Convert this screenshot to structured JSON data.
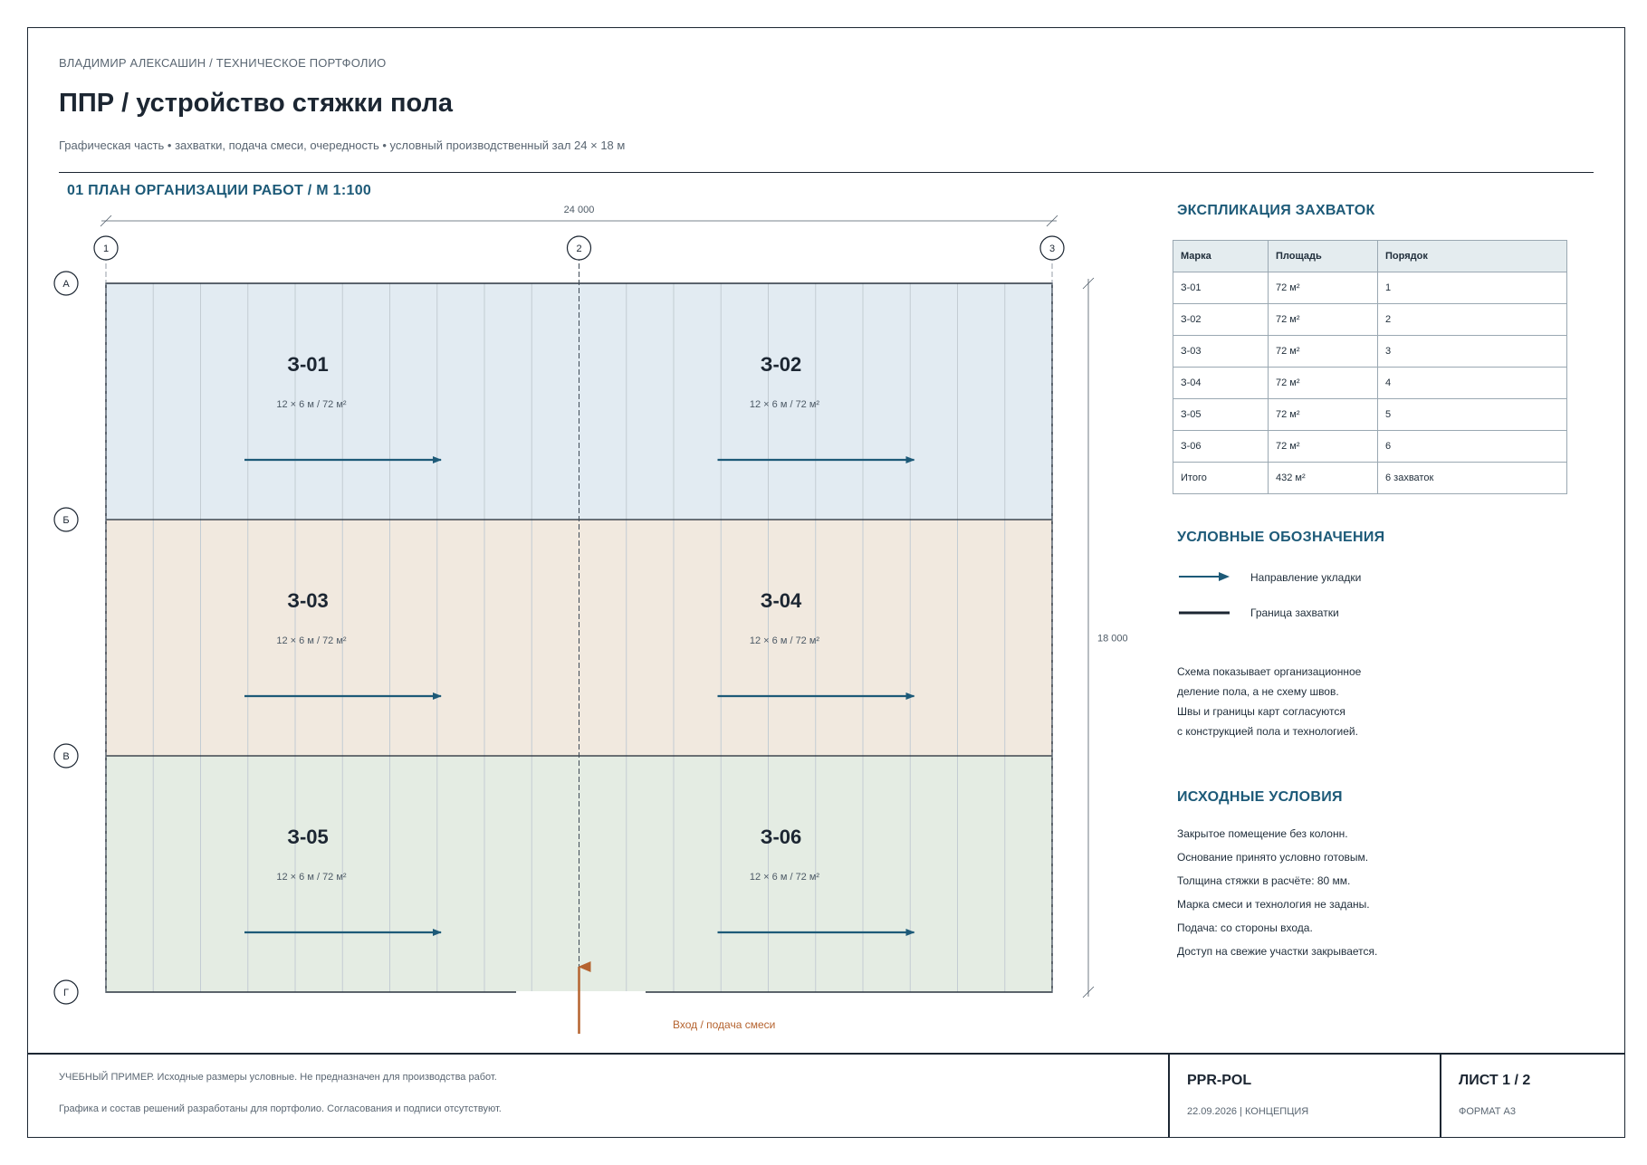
{
  "header": {
    "breadcrumb": "ВЛАДИМИР АЛЕКСАШИН  /  ТЕХНИЧЕСКОЕ ПОРТФОЛИО",
    "title": "ППР / устройство стяжки пола",
    "subtitle": "Графическая часть • захватки, подача смеси, очередность • условный производственный зал 24 × 18 м"
  },
  "plan": {
    "section_title": "01  ПЛАН ОРГАНИЗАЦИИ РАБОТ  /  М 1:100",
    "dim_width": "24 000",
    "dim_height": "18 000",
    "axes_columns": [
      "1",
      "2",
      "3"
    ],
    "axes_rows": [
      "А",
      "Б",
      "В",
      "Г"
    ],
    "zones": [
      {
        "mark": "З-01",
        "size": "12 × 6 м / 72 м²",
        "color": "#e2ebf2"
      },
      {
        "mark": "З-02",
        "size": "12 × 6 м / 72 м²",
        "color": "#e2ebf2"
      },
      {
        "mark": "З-03",
        "size": "12 × 6 м / 72 м²",
        "color": "#f1e9df"
      },
      {
        "mark": "З-04",
        "size": "12 × 6 м / 72 м²",
        "color": "#f1e9df"
      },
      {
        "mark": "З-05",
        "size": "12 × 6 м / 72 м²",
        "color": "#e4ece3"
      },
      {
        "mark": "З-06",
        "size": "12 × 6 м / 72 м²",
        "color": "#e4ece3"
      }
    ],
    "entry_label": "Вход / подача смеси",
    "colors": {
      "arrow": "#1d5a78",
      "entry": "#b5632f",
      "outline": "#1c2632"
    }
  },
  "explication": {
    "title": "ЭКСПЛИКАЦИЯ ЗАХВАТОК",
    "headers": [
      "Марка",
      "Площадь",
      "Порядок"
    ],
    "rows": [
      [
        "З-01",
        "72 м²",
        "1"
      ],
      [
        "З-02",
        "72 м²",
        "2"
      ],
      [
        "З-03",
        "72 м²",
        "3"
      ],
      [
        "З-04",
        "72 м²",
        "4"
      ],
      [
        "З-05",
        "72 м²",
        "5"
      ],
      [
        "З-06",
        "72 м²",
        "6"
      ],
      [
        "Итого",
        "432 м²",
        "6 захваток"
      ]
    ]
  },
  "legend": {
    "title": "УСЛОВНЫЕ ОБОЗНАЧЕНИЯ",
    "items": [
      "Направление укладки",
      "Граница захватки"
    ]
  },
  "note": {
    "lines": [
      "Схема показывает организационное",
      "деление пола, а не схему швов.",
      "Швы и границы карт согласуются",
      "с конструкцией пола и технологией."
    ]
  },
  "conditions": {
    "title": "ИСХОДНЫЕ УСЛОВИЯ",
    "items": [
      "Закрытое помещение без колонн.",
      "Основание принято условно готовым.",
      "Толщина стяжки в расчёте: 80 мм.",
      "Марка смеси и технология не заданы.",
      "Подача: со стороны входа.",
      "Доступ на свежие участки закрывается."
    ]
  },
  "footer": {
    "disclaimer_1": "УЧЕБНЫЙ ПРИМЕР. Исходные размеры условные. Не предназначен для производства работ.",
    "disclaimer_2": "Графика и состав решений разработаны для портфолио. Согласования и подписи отсутствуют.",
    "code": "PPR-POL",
    "date_status": "22.09.2026  |  КОНЦЕПЦИЯ",
    "sheet": "ЛИСТ 1 / 2",
    "format": "ФОРМАТ А3"
  }
}
